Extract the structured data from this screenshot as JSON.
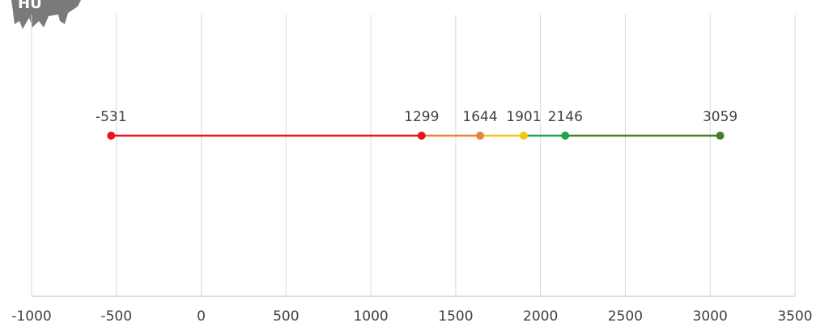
{
  "logo_text": "HU",
  "chart_data": {
    "type": "line",
    "values": [
      -531,
      1299,
      1644,
      1901,
      2146,
      3059
    ],
    "colors": [
      "#e8141c",
      "#e8141c",
      "#e8833a",
      "#f5c518",
      "#1aa64a",
      "#4a7c2f"
    ],
    "xlim": [
      -1000,
      3500
    ],
    "xticks": [
      -1000,
      -500,
      0,
      500,
      1000,
      1500,
      2000,
      2500,
      3000,
      3500
    ],
    "grid": true
  }
}
